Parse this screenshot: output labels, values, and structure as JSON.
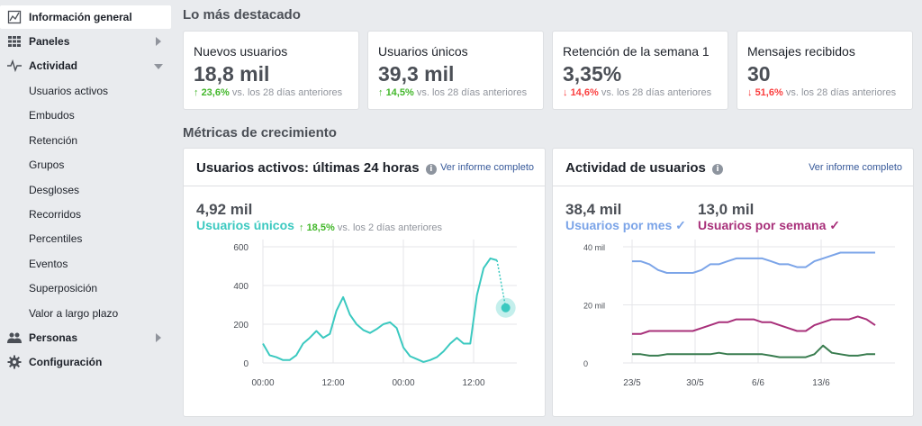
{
  "sidebar": {
    "items": [
      {
        "label": "Información general",
        "icon": "chart-line-icon",
        "active": true
      },
      {
        "label": "Paneles",
        "icon": "grid-icon",
        "chevron": "right"
      },
      {
        "label": "Actividad",
        "icon": "pulse-icon",
        "chevron": "down"
      },
      {
        "label": "Usuarios activos"
      },
      {
        "label": "Embudos"
      },
      {
        "label": "Retención"
      },
      {
        "label": "Grupos"
      },
      {
        "label": "Desgloses"
      },
      {
        "label": "Recorridos"
      },
      {
        "label": "Percentiles"
      },
      {
        "label": "Eventos"
      },
      {
        "label": "Superposición"
      },
      {
        "label": "Valor a largo plazo"
      },
      {
        "label": "Personas",
        "icon": "people-icon",
        "chevron": "right"
      },
      {
        "label": "Configuración",
        "icon": "gear-icon"
      }
    ]
  },
  "highlights": {
    "title": "Lo más destacado",
    "cards": [
      {
        "title": "Nuevos usuarios",
        "value": "18,8 mil",
        "direction": "up",
        "arrow": "↑",
        "pct": "23,6%",
        "suffix": "vs. los 28 días anteriores"
      },
      {
        "title": "Usuarios únicos",
        "value": "39,3 mil",
        "direction": "up",
        "arrow": "↑",
        "pct": "14,5%",
        "suffix": "vs. los 28 días anteriores"
      },
      {
        "title": "Retención de la semana 1",
        "value": "3,35%",
        "direction": "down",
        "arrow": "↓",
        "pct": "14,6%",
        "suffix": "vs. los 28 días anteriores"
      },
      {
        "title": "Mensajes recibidos",
        "value": "30",
        "direction": "down",
        "arrow": "↓",
        "pct": "51,6%",
        "suffix": "vs. los 28 días anteriores"
      }
    ]
  },
  "growth": {
    "title": "Métricas de crecimiento",
    "active_users": {
      "title": "Usuarios activos: últimas 24 horas",
      "info": "i",
      "link": "Ver informe completo",
      "value": "4,92 mil",
      "label": "Usuarios únicos",
      "arrow": "↑",
      "pct": "18,5%",
      "suffix": "vs. los 2 días anteriores"
    },
    "user_activity": {
      "title": "Actividad de usuarios",
      "info": "i",
      "link": "Ver informe completo",
      "monthly_value": "38,4 mil",
      "monthly_label": "Usuarios por mes",
      "weekly_value": "13,0 mil",
      "weekly_label": "Usuarios por semana",
      "check": "✓"
    }
  },
  "chart_data": [
    {
      "type": "line",
      "title": "Usuarios activos: últimas 24 horas",
      "xlabel": "",
      "ylabel": "",
      "ylim": [
        0,
        600
      ],
      "yticks": [
        "0",
        "200",
        "400",
        "600"
      ],
      "xticks": [
        "00:00",
        "12:00",
        "00:00",
        "12:00"
      ],
      "grid": true,
      "series": [
        {
          "name": "Usuarios únicos",
          "color": "#3bc9c0",
          "values": [
            100,
            40,
            30,
            15,
            15,
            40,
            100,
            130,
            165,
            130,
            150,
            270,
            340,
            250,
            200,
            170,
            155,
            175,
            200,
            210,
            180,
            80,
            35,
            20,
            5,
            15,
            30,
            60,
            100,
            130,
            100,
            100,
            350,
            490,
            540,
            530
          ],
          "projected_last": 285
        }
      ]
    },
    {
      "type": "line",
      "title": "Actividad de usuarios",
      "xlabel": "",
      "ylabel": "",
      "ylim": [
        0,
        40
      ],
      "yticks": [
        "0",
        "20 mil",
        "40 mil"
      ],
      "xticks": [
        "23/5",
        "30/5",
        "6/6",
        "13/6"
      ],
      "grid": true,
      "series": [
        {
          "name": "Usuarios por mes",
          "color": "#7ba4e8",
          "values": [
            35,
            35,
            34,
            32,
            31,
            31,
            31,
            31,
            32,
            34,
            34,
            35,
            36,
            36,
            36,
            36,
            35,
            34,
            34,
            33,
            33,
            35,
            36,
            37,
            38,
            38,
            38,
            38,
            38
          ]
        },
        {
          "name": "Usuarios por semana",
          "color": "#a8307a",
          "values": [
            10,
            10,
            11,
            11,
            11,
            11,
            11,
            11,
            12,
            13,
            14,
            14,
            15,
            15,
            15,
            14,
            14,
            13,
            12,
            11,
            11,
            13,
            14,
            15,
            15,
            15,
            16,
            15,
            13
          ]
        },
        {
          "name": "",
          "color": "#3a7d50",
          "values": [
            3,
            3,
            2.5,
            2.5,
            3,
            3,
            3,
            3,
            3,
            3,
            3.5,
            3,
            3,
            3,
            3,
            3,
            2.5,
            2,
            2,
            2,
            2,
            3,
            6,
            3.5,
            3,
            2.5,
            2.5,
            3,
            3
          ]
        }
      ]
    }
  ],
  "colors": {
    "teal": "#3bc9c0",
    "blue": "#7ba4e8",
    "magenta": "#a8307a",
    "green": "#42b72a",
    "red": "#fa3e3e",
    "link": "#365899"
  }
}
